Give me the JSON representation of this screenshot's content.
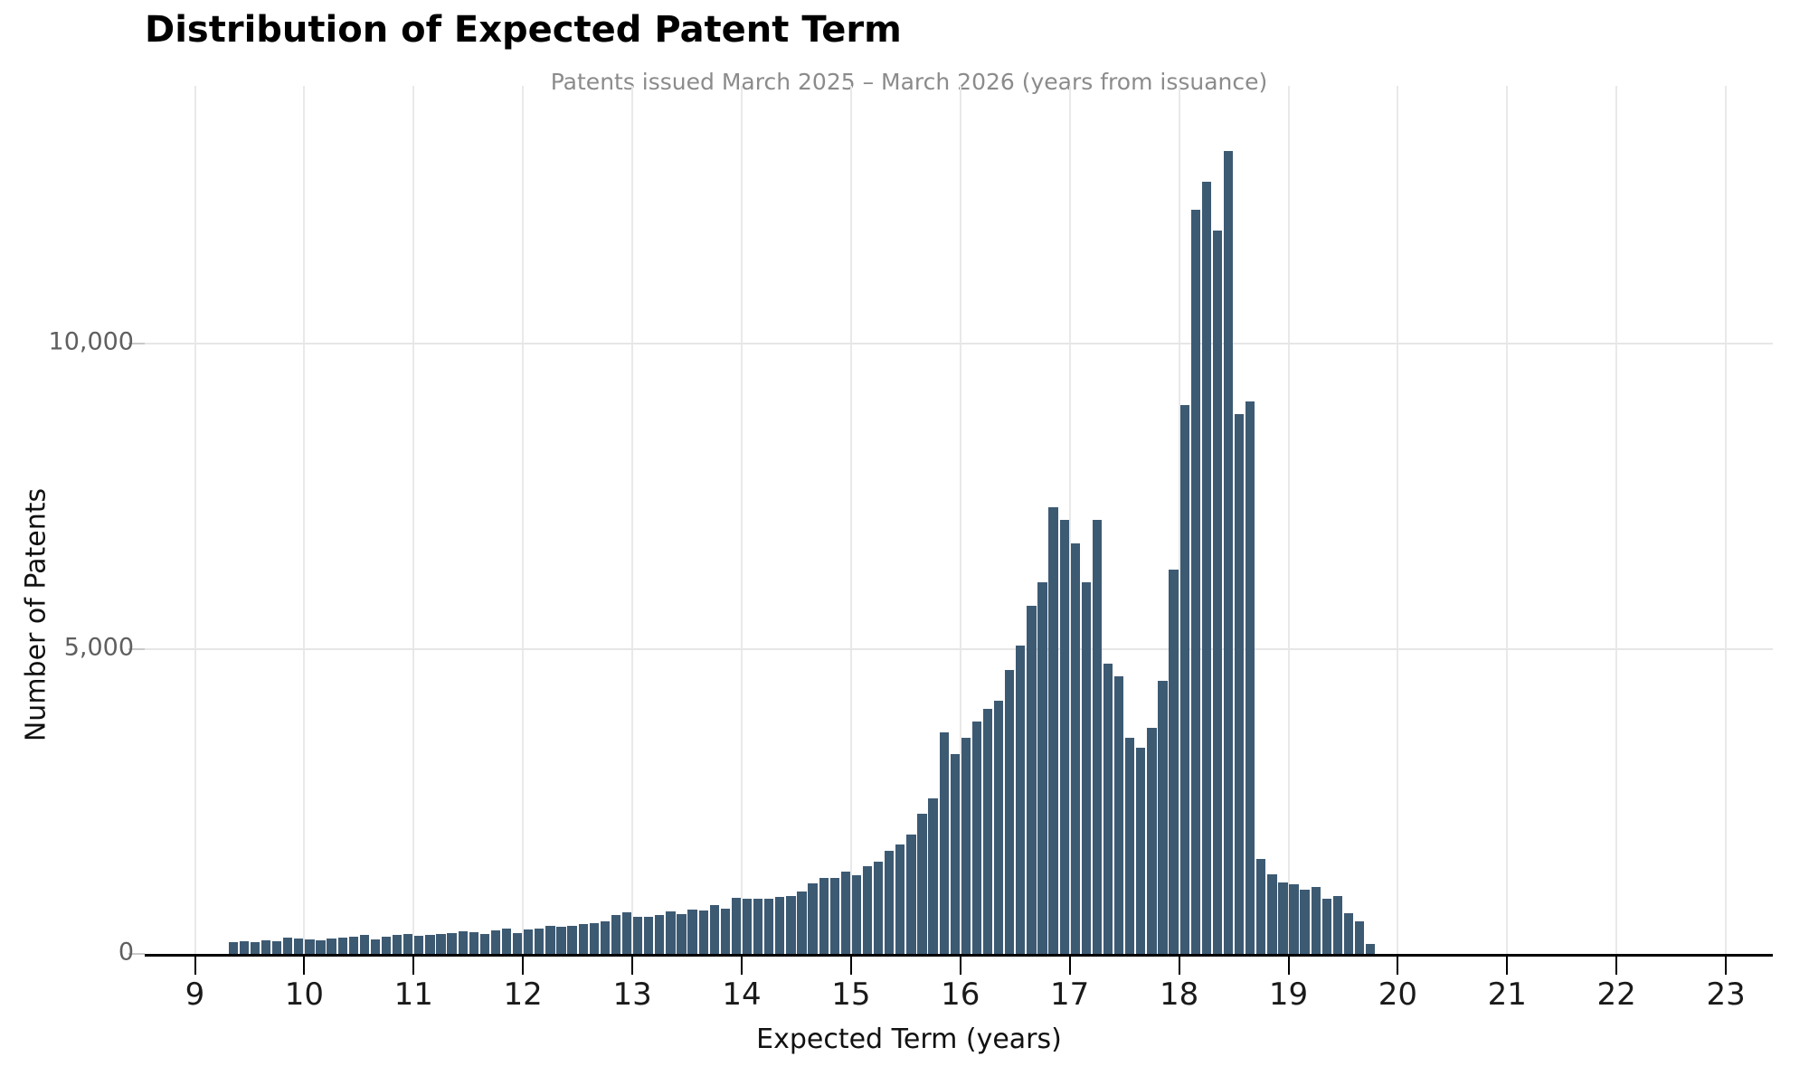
{
  "title": "Distribution of Expected Patent Term",
  "subtitle": "Patents issued March 2025 – March 2026 (years from issuance)",
  "colors": {
    "bar": "#3d5a73",
    "grid": "#e8e8e8",
    "axis": "#000000",
    "x_tick_label": "#1a1a1a",
    "y_tick_label": "#5f5f5f",
    "subtitle": "#8b8b8b",
    "background": "#ffffff"
  },
  "chart_data": {
    "type": "bar",
    "title": "Distribution of Expected Patent Term",
    "subtitle": "Patents issued March 2025 – March 2026 (years from issuance)",
    "xlabel": "Expected Term (years)",
    "ylabel": "Number of Patents",
    "grid": "on",
    "legend": "none",
    "bin_start": 9.3,
    "bin_width": 0.1,
    "xlim": [
      8.55,
      23.45
    ],
    "ylim": [
      0,
      14200
    ],
    "x_ticks": [
      9,
      10,
      11,
      12,
      13,
      14,
      15,
      16,
      17,
      18,
      19,
      20,
      21,
      22,
      23
    ],
    "y_ticks": [
      0,
      5000,
      10000
    ],
    "y_tick_labels": [
      "0",
      "5,000",
      "10,000"
    ],
    "values": [
      190,
      210,
      195,
      225,
      210,
      265,
      250,
      240,
      225,
      250,
      265,
      280,
      305,
      240,
      280,
      305,
      320,
      290,
      305,
      330,
      335,
      365,
      360,
      330,
      380,
      420,
      340,
      400,
      415,
      455,
      440,
      460,
      495,
      500,
      535,
      630,
      680,
      610,
      605,
      640,
      700,
      655,
      730,
      710,
      795,
      740,
      915,
      905,
      905,
      900,
      940,
      950,
      1020,
      1160,
      1245,
      1245,
      1345,
      1285,
      1440,
      1515,
      1690,
      1800,
      1950,
      2300,
      2550,
      3630,
      3280,
      3540,
      3810,
      4020,
      4145,
      4650,
      5050,
      5700,
      6090,
      7320,
      7110,
      6725,
      6095,
      7115,
      4760,
      4550,
      3540,
      3380,
      3710,
      4470,
      6300,
      9000,
      12200,
      12650,
      11850,
      13150,
      8850,
      9050,
      1550,
      1300,
      1175,
      1145,
      1050,
      1100,
      910,
      950,
      670,
      530,
      160
    ]
  }
}
